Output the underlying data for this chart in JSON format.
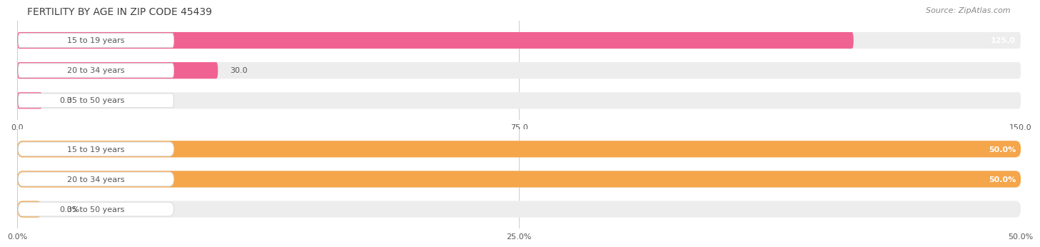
{
  "title": "FERTILITY BY AGE IN ZIP CODE 45439",
  "source": "Source: ZipAtlas.com",
  "top_chart": {
    "categories": [
      "15 to 19 years",
      "20 to 34 years",
      "35 to 50 years"
    ],
    "values": [
      125.0,
      30.0,
      0.0
    ],
    "bar_color": "#F06292",
    "bar_bg_color": "#EDEDED",
    "xlim": [
      0,
      150.0
    ],
    "xticks": [
      0.0,
      75.0,
      150.0
    ],
    "xtick_labels": [
      "0.0",
      "75.0",
      "150.0"
    ],
    "value_labels": [
      "125.0",
      "30.0",
      "0.0"
    ],
    "value_inside": [
      true,
      false,
      false
    ]
  },
  "bottom_chart": {
    "categories": [
      "15 to 19 years",
      "20 to 34 years",
      "35 to 50 years"
    ],
    "values": [
      50.0,
      50.0,
      0.0
    ],
    "bar_color": "#F5A54A",
    "bar_bg_color": "#EDEDED",
    "xlim": [
      0,
      50.0
    ],
    "xticks": [
      0.0,
      25.0,
      50.0
    ],
    "xtick_labels": [
      "0.0%",
      "25.0%",
      "50.0%"
    ],
    "value_labels": [
      "50.0%",
      "50.0%",
      "0.0%"
    ],
    "value_inside": [
      true,
      true,
      false
    ]
  },
  "label_color": "#555555",
  "label_fontsize": 8.0,
  "value_fontsize": 8.0,
  "title_fontsize": 10,
  "source_fontsize": 8,
  "bar_height": 0.55,
  "background_color": "#FFFFFF",
  "title_color": "#404040",
  "source_color": "#888888",
  "grid_color": "#CCCCCC",
  "pill_bg": "#FFFFFF",
  "pill_border": "#DDDDDD"
}
